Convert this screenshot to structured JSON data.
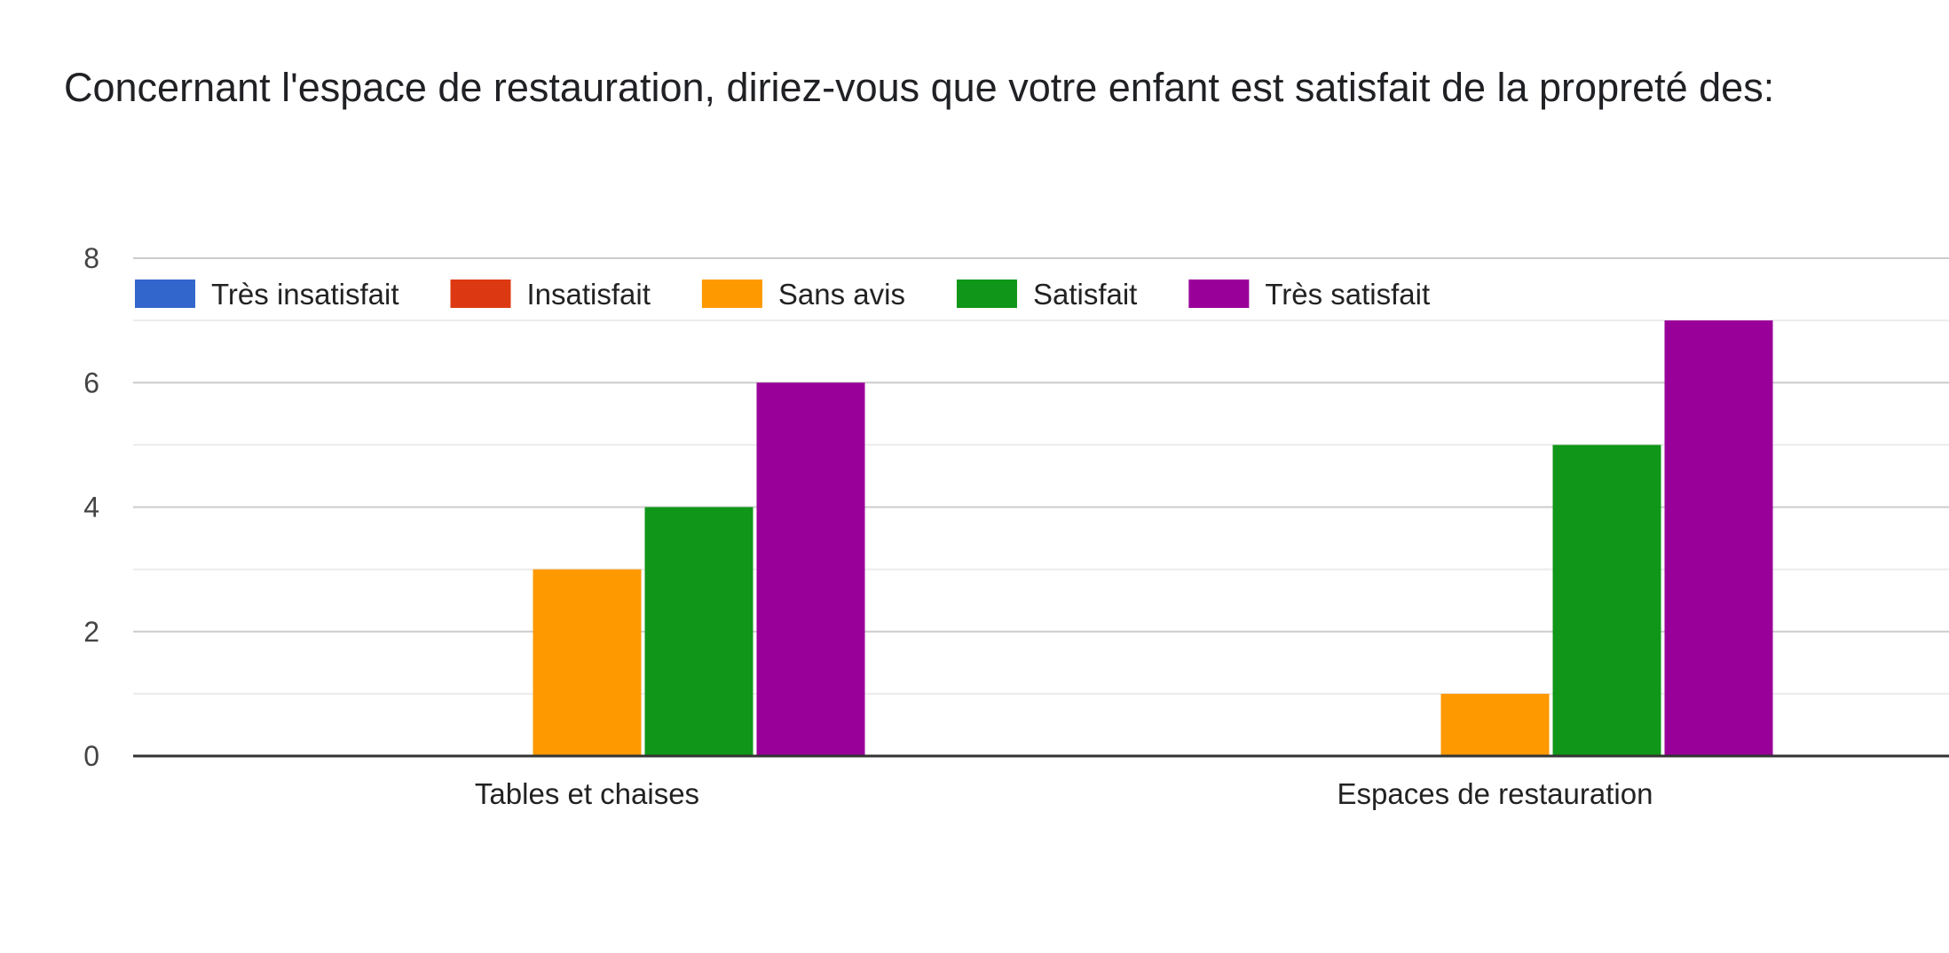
{
  "chart_data": {
    "type": "bar",
    "title": "Concernant l'espace de restauration, diriez-vous que votre enfant est satisfait de la propreté des:",
    "xlabel": "",
    "ylabel": "",
    "categories": [
      "Tables et chaises",
      "Espaces de restauration"
    ],
    "series": [
      {
        "name": "Très insatisfait",
        "color": "#3366cc",
        "values": [
          0,
          0
        ]
      },
      {
        "name": "Insatisfait",
        "color": "#dc3912",
        "values": [
          0,
          0
        ]
      },
      {
        "name": "Sans avis",
        "color": "#ff9900",
        "values": [
          3,
          1
        ]
      },
      {
        "name": "Satisfait",
        "color": "#109618",
        "values": [
          4,
          5
        ]
      },
      {
        "name": "Très satisfait",
        "color": "#990099",
        "values": [
          6,
          7
        ]
      }
    ],
    "ylim": [
      0,
      8
    ],
    "yticks": [
      0,
      2,
      4,
      6,
      8
    ],
    "grid": true,
    "legend_position": "top-left"
  }
}
